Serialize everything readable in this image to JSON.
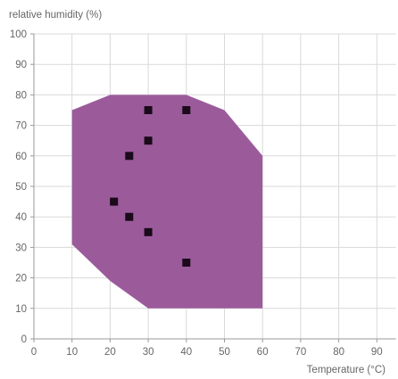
{
  "chart_data": {
    "type": "scatter",
    "ylabel": "relative humidity (%)",
    "xlabel": "Temperature (°C)",
    "xlim": [
      0,
      95
    ],
    "ylim": [
      0,
      100
    ],
    "x_ticks": [
      "0",
      "10",
      "20",
      "30",
      "40",
      "50",
      "60",
      "70",
      "80",
      "90"
    ],
    "y_ticks": [
      "0",
      "10",
      "20",
      "30",
      "40",
      "50",
      "60",
      "70",
      "80",
      "90",
      "100"
    ],
    "grid": true,
    "region": {
      "color": "#9b5b9b",
      "polygon": [
        [
          10,
          75
        ],
        [
          20,
          80
        ],
        [
          40,
          80
        ],
        [
          50,
          75
        ],
        [
          60,
          60
        ],
        [
          60,
          10
        ],
        [
          30,
          10
        ],
        [
          20,
          19
        ],
        [
          10,
          31
        ]
      ]
    },
    "points_color": "#1a0a1a",
    "points": [
      {
        "x": 30,
        "y": 75
      },
      {
        "x": 40,
        "y": 75
      },
      {
        "x": 30,
        "y": 65
      },
      {
        "x": 25,
        "y": 60
      },
      {
        "x": 21,
        "y": 45
      },
      {
        "x": 25,
        "y": 40
      },
      {
        "x": 30,
        "y": 35
      },
      {
        "x": 40,
        "y": 25
      }
    ]
  }
}
